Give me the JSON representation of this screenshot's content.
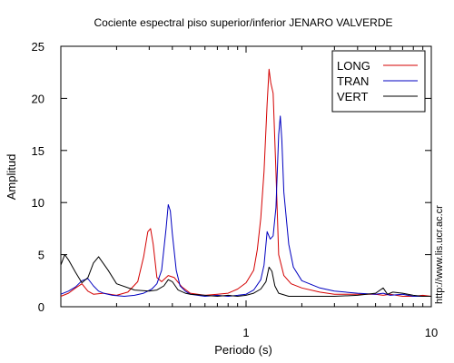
{
  "chart_data": {
    "type": "line",
    "title": "Cociente espectral piso superior/inferior  JENARO VALVERDE",
    "xlabel": "Periodo (s)",
    "ylabel": "Amplitud",
    "xscale": "log",
    "xlim": [
      0.1,
      10
    ],
    "ylim": [
      0,
      25
    ],
    "x_ticks": [
      1,
      10
    ],
    "x_tick_labels": [
      "1",
      "10"
    ],
    "y_ticks": [
      0,
      5,
      10,
      15,
      20,
      25
    ],
    "y_tick_labels": [
      "0",
      "5",
      "10",
      "15",
      "20",
      "25"
    ],
    "grid": false,
    "legend_position": "top-right",
    "credit": "http://www.lis.ucr.ac.cr",
    "series": [
      {
        "name": "LONG",
        "color": "#d40000",
        "x": [
          0.1,
          0.11,
          0.12,
          0.13,
          0.14,
          0.15,
          0.17,
          0.2,
          0.23,
          0.26,
          0.28,
          0.295,
          0.305,
          0.315,
          0.33,
          0.35,
          0.38,
          0.41,
          0.45,
          0.5,
          0.6,
          0.7,
          0.8,
          0.9,
          1.0,
          1.1,
          1.15,
          1.2,
          1.25,
          1.3,
          1.33,
          1.36,
          1.4,
          1.45,
          1.5,
          1.6,
          1.75,
          2.0,
          2.5,
          3.0,
          4.0,
          5.0,
          5.5,
          6.0,
          7.0,
          8.0,
          9.0,
          10.0
        ],
        "y": [
          1.0,
          1.3,
          1.8,
          2.2,
          1.5,
          1.2,
          1.3,
          1.1,
          1.4,
          2.4,
          4.8,
          7.2,
          7.5,
          6.0,
          2.8,
          2.4,
          3.0,
          2.8,
          1.9,
          1.3,
          1.1,
          1.2,
          1.3,
          1.7,
          2.3,
          3.5,
          5.5,
          8.5,
          13.0,
          19.5,
          22.8,
          21.5,
          20.5,
          13.0,
          5.0,
          3.0,
          2.2,
          1.8,
          1.4,
          1.2,
          1.2,
          1.2,
          1.1,
          1.2,
          1.0,
          1.0,
          1.1,
          1.0
        ]
      },
      {
        "name": "TRAN",
        "color": "#0000c0",
        "x": [
          0.1,
          0.11,
          0.12,
          0.13,
          0.14,
          0.15,
          0.16,
          0.17,
          0.19,
          0.22,
          0.25,
          0.28,
          0.31,
          0.33,
          0.35,
          0.37,
          0.38,
          0.39,
          0.4,
          0.42,
          0.44,
          0.47,
          0.5,
          0.6,
          0.7,
          0.8,
          0.9,
          1.0,
          1.1,
          1.2,
          1.25,
          1.3,
          1.35,
          1.4,
          1.45,
          1.5,
          1.53,
          1.56,
          1.6,
          1.7,
          1.8,
          2.0,
          2.5,
          3.0,
          4.0,
          5.0,
          5.5,
          6.0,
          7.0,
          8.0,
          9.0,
          10.0
        ],
        "y": [
          1.2,
          1.5,
          1.9,
          2.5,
          2.7,
          2.0,
          1.5,
          1.3,
          1.1,
          1.0,
          1.1,
          1.3,
          1.7,
          2.2,
          3.5,
          7.5,
          9.8,
          9.2,
          7.0,
          3.5,
          2.0,
          1.5,
          1.2,
          1.0,
          1.1,
          1.0,
          1.1,
          1.2,
          1.6,
          2.6,
          4.0,
          7.2,
          6.5,
          6.8,
          9.5,
          16.5,
          18.3,
          16.0,
          11.0,
          6.0,
          3.8,
          2.5,
          1.8,
          1.5,
          1.3,
          1.2,
          1.3,
          1.1,
          1.2,
          1.0,
          1.0,
          1.0
        ]
      },
      {
        "name": "VERT",
        "color": "#000000",
        "x": [
          0.1,
          0.105,
          0.11,
          0.12,
          0.13,
          0.14,
          0.15,
          0.16,
          0.18,
          0.2,
          0.25,
          0.3,
          0.33,
          0.36,
          0.38,
          0.4,
          0.43,
          0.47,
          0.5,
          0.6,
          0.7,
          0.8,
          0.9,
          1.0,
          1.1,
          1.2,
          1.28,
          1.33,
          1.38,
          1.43,
          1.5,
          1.7,
          2.0,
          2.5,
          3.0,
          4.0,
          5.0,
          5.5,
          5.8,
          6.2,
          7.0,
          8.0,
          9.0,
          10.0
        ],
        "y": [
          4.0,
          5.0,
          4.5,
          3.3,
          2.3,
          2.8,
          4.2,
          4.8,
          3.5,
          2.2,
          1.6,
          1.5,
          1.6,
          2.0,
          2.6,
          2.4,
          1.6,
          1.3,
          1.2,
          1.1,
          1.0,
          1.1,
          1.0,
          1.1,
          1.3,
          1.7,
          2.4,
          3.8,
          3.4,
          2.0,
          1.3,
          1.0,
          1.0,
          1.0,
          1.0,
          1.1,
          1.3,
          1.8,
          1.2,
          1.4,
          1.3,
          1.1,
          1.0,
          1.0
        ]
      }
    ]
  }
}
